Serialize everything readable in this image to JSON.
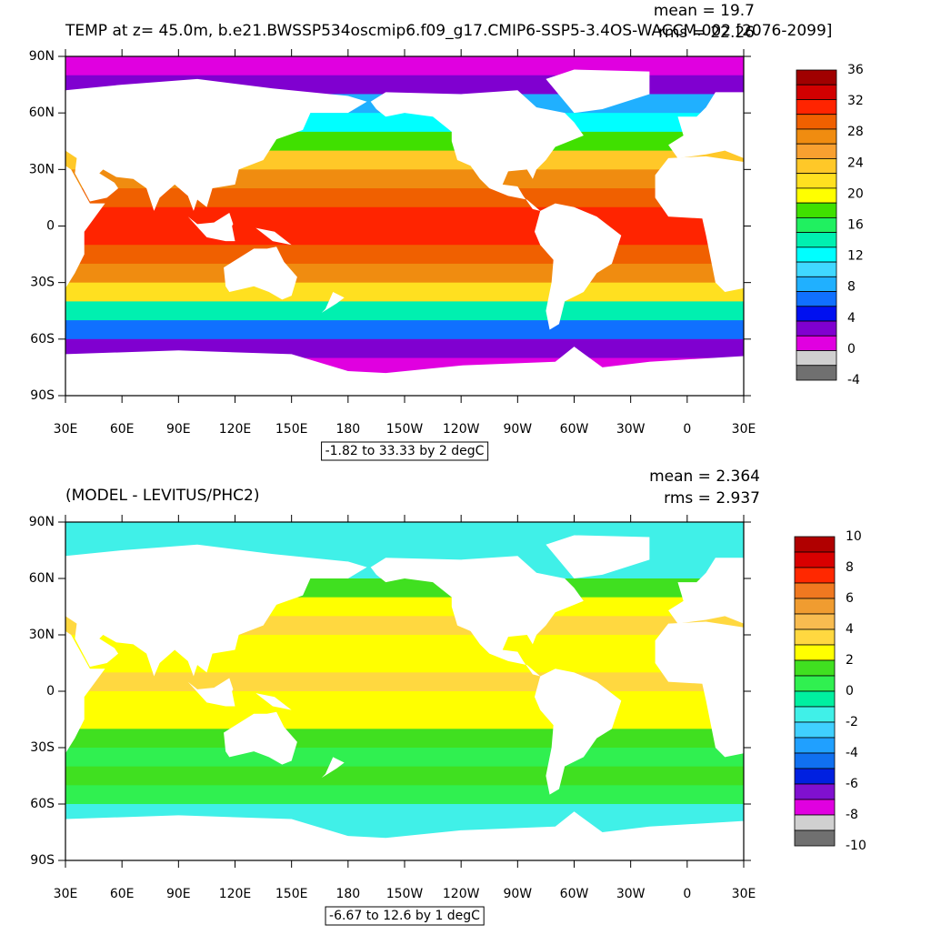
{
  "panels": [
    {
      "title": "TEMP at z=  45.0m, b.e21.BWSSP534oscmip6.f09_g17.CMIP6-SSP5-3.4OS-WACCM.002 [2076-2099]",
      "mean": "mean = 19.7",
      "rms": "rms = 22.26",
      "info": "-1.82 to 33.33 by 2 degC",
      "xlim": [
        30,
        390
      ],
      "ylim": [
        -90,
        90
      ],
      "lat_ticks": [
        {
          "value": 90,
          "label": "90N"
        },
        {
          "value": 60,
          "label": "60N"
        },
        {
          "value": 30,
          "label": "30N"
        },
        0,
        {
          "value": -30,
          "label": "30S"
        },
        {
          "value": -60,
          "label": "60S"
        },
        {
          "value": -90,
          "label": "90S"
        }
      ],
      "lon_ticks": [
        {
          "value": 30,
          "label": "30E"
        },
        {
          "value": 60,
          "label": "60E"
        },
        {
          "value": 90,
          "label": "90E"
        },
        {
          "value": 120,
          "label": "120E"
        },
        {
          "value": 150,
          "label": "150E"
        },
        180,
        {
          "value": 210,
          "label": "150W"
        },
        {
          "value": 240,
          "label": "120W"
        },
        {
          "value": 270,
          "label": "90W"
        },
        {
          "value": 300,
          "label": "60W"
        },
        {
          "value": 330,
          "label": "30W"
        },
        {
          "value": 360,
          "label": "0"
        },
        {
          "value": 390,
          "label": "30E"
        }
      ],
      "colorbar": {
        "ticks": [
          36,
          32,
          28,
          24,
          20,
          16,
          12,
          8,
          4,
          0,
          -4
        ],
        "colors": [
          "#a00000",
          "#d20000",
          "#ff2400",
          "#f06000",
          "#f08c10",
          "#f8a030",
          "#ffc828",
          "#ffe020",
          "#ffff00",
          "#40e000",
          "#20f060",
          "#00f0b0",
          "#00ffff",
          "#40d8ff",
          "#20b0ff",
          "#1070ff",
          "#0010f0",
          "#8000d0",
          "#e000e0",
          "#d0d0d0",
          "#707070"
        ]
      }
    },
    {
      "title": "(MODEL - LEVITUS/PHC2)",
      "mean": "mean = 2.364",
      "rms": "rms = 2.937",
      "info": "-6.67 to 12.6 by 1 degC",
      "xlim": [
        30,
        390
      ],
      "ylim": [
        -90,
        90
      ],
      "lat_ticks": [
        {
          "value": 90,
          "label": "90N"
        },
        {
          "value": 60,
          "label": "60N"
        },
        {
          "value": 30,
          "label": "30N"
        },
        0,
        {
          "value": -30,
          "label": "30S"
        },
        {
          "value": -60,
          "label": "60S"
        },
        {
          "value": -90,
          "label": "90S"
        }
      ],
      "lon_ticks": [
        {
          "value": 30,
          "label": "30E"
        },
        {
          "value": 60,
          "label": "60E"
        },
        {
          "value": 90,
          "label": "90E"
        },
        {
          "value": 120,
          "label": "120E"
        },
        {
          "value": 150,
          "label": "150E"
        },
        180,
        {
          "value": 210,
          "label": "150W"
        },
        {
          "value": 240,
          "label": "120W"
        },
        {
          "value": 270,
          "label": "90W"
        },
        {
          "value": 300,
          "label": "60W"
        },
        {
          "value": 330,
          "label": "30W"
        },
        {
          "value": 360,
          "label": "0"
        },
        {
          "value": 390,
          "label": "30E"
        }
      ],
      "colorbar": {
        "ticks": [
          10,
          8,
          6,
          4,
          2,
          0,
          -2,
          -4,
          -6,
          -8,
          -10
        ],
        "colors": [
          "#b00000",
          "#d80000",
          "#ff2800",
          "#f07820",
          "#f09c30",
          "#f8bc50",
          "#ffd840",
          "#ffff00",
          "#40e020",
          "#30f050",
          "#00f0a0",
          "#40f0e8",
          "#40d0ff",
          "#20a0ff",
          "#1070f0",
          "#0020e0",
          "#8010d0",
          "#e000e0",
          "#d0d0d0",
          "#707070"
        ]
      }
    }
  ]
}
